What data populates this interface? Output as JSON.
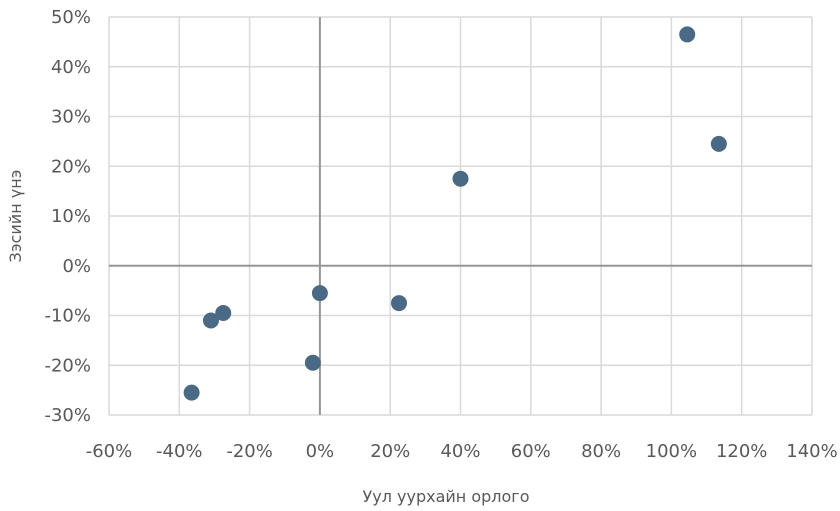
{
  "chart_data": {
    "type": "scatter",
    "title": "",
    "xlabel": "Уул уурхайн орлого",
    "ylabel": "Зэсийн үнэ",
    "xlim": [
      -60,
      140
    ],
    "ylim": [
      -30,
      50
    ],
    "x_ticks": [
      -60,
      -40,
      -20,
      0,
      20,
      40,
      60,
      80,
      100,
      120,
      140
    ],
    "y_ticks": [
      -30,
      -20,
      -10,
      0,
      10,
      20,
      30,
      40,
      50
    ],
    "x_tick_labels": [
      "-60%",
      "-40%",
      "-20%",
      "0%",
      "20%",
      "40%",
      "60%",
      "80%",
      "100%",
      "120%",
      "140%"
    ],
    "y_tick_labels": [
      "-30%",
      "-20%",
      "-10%",
      "0%",
      "10%",
      "20%",
      "30%",
      "40%",
      "50%"
    ],
    "grid": true,
    "legend": "none",
    "point_color": "#4a6985",
    "grid_color": "#d9d9d9",
    "zero_line_color": "#969696",
    "points": [
      {
        "x": -36.5,
        "y": -25.5
      },
      {
        "x": -31,
        "y": -11
      },
      {
        "x": -27.5,
        "y": -9.5
      },
      {
        "x": -2,
        "y": -19.5
      },
      {
        "x": 0,
        "y": -5.5
      },
      {
        "x": 22.5,
        "y": -7.5
      },
      {
        "x": 40,
        "y": 17.5
      },
      {
        "x": 104.5,
        "y": 46.5
      },
      {
        "x": 113.5,
        "y": 24.5
      }
    ]
  }
}
